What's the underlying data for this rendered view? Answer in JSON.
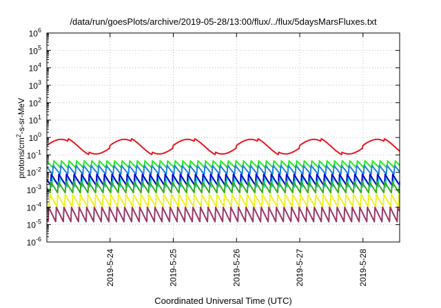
{
  "chart_data": {
    "type": "line",
    "title": "/data/run/goesPlots/archive/2019-05-28/13:00/flux/../flux/5daysMarsFluxes.txt",
    "xlabel": "Coordinated Universal Time (UTC)",
    "ylabel": {
      "base": "protons/cm",
      "sup": "2",
      "rest": "-s-sr-MeV"
    },
    "yscale": "log",
    "ylim_exp": [
      -6,
      6
    ],
    "ytick_exponents": [
      -6,
      -5,
      -4,
      -3,
      -2,
      -1,
      0,
      1,
      2,
      3,
      4,
      5,
      6
    ],
    "ytick_base": "10",
    "xlim_days": [
      23.0,
      28.58
    ],
    "xticks": [
      {
        "day": 24,
        "label": "2019-5-24"
      },
      {
        "day": 25,
        "label": "2019-5-25"
      },
      {
        "day": 26,
        "label": "2019-5-26"
      },
      {
        "day": 27,
        "label": "2019-5-27"
      },
      {
        "day": 28,
        "label": "2019-5-28"
      }
    ],
    "grid": true,
    "series": [
      {
        "color": "#e8141c",
        "base_exp": -0.6,
        "min_exp": -0.95,
        "sawtooth_amp": 0.35,
        "sawtooth_period_days": 0.12
      },
      {
        "color": "#22ee22",
        "base_exp": -1.55,
        "sawtooth_amp": 0.45,
        "sawtooth_period_days": 0.12
      },
      {
        "color": "#1e7fe0",
        "base_exp": -1.85,
        "sawtooth_amp": 0.55,
        "sawtooth_period_days": 0.12
      },
      {
        "color": "#22ddcc",
        "base_exp": -2.55,
        "sawtooth_amp": 0.6,
        "sawtooth_period_days": 0.12
      },
      {
        "color": "#0000cc",
        "base_exp": -2.45,
        "sawtooth_amp": 0.7,
        "sawtooth_period_days": 0.12
      },
      {
        "color": "#33aa22",
        "base_exp": -2.85,
        "sawtooth_amp": 0.7,
        "sawtooth_period_days": 0.12
      },
      {
        "color": "#f0f020",
        "base_exp": -3.6,
        "sawtooth_amp": 0.75,
        "sawtooth_period_days": 0.12
      },
      {
        "color": "#993366",
        "base_exp": -4.45,
        "sawtooth_amp": 0.9,
        "sawtooth_period_days": 0.12
      }
    ]
  }
}
